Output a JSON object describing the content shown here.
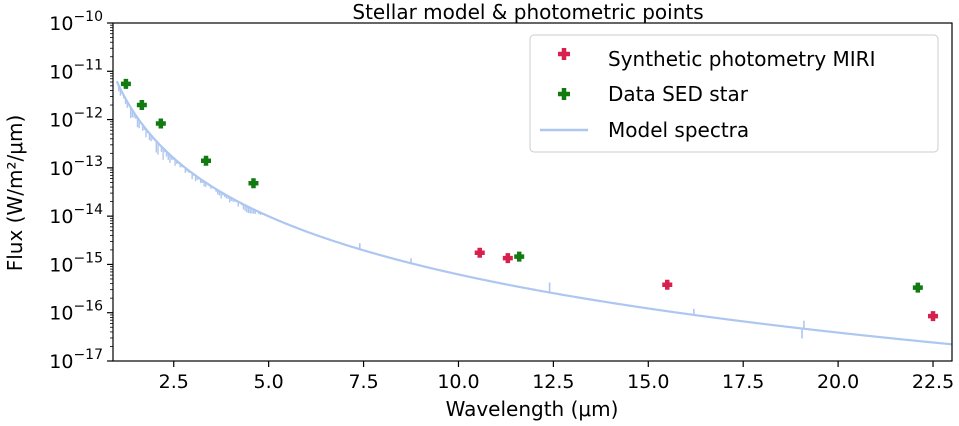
{
  "chart_data": {
    "type": "scatter",
    "title": "Stellar model & photometric points",
    "xlabel": "Wavelength (μm)",
    "ylabel": "Flux (W/m²/μm)",
    "xlim": [
      0.9,
      23.0
    ],
    "ylim_log10": [
      -17,
      -10
    ],
    "yscale": "log",
    "x_ticks": [
      2.5,
      5.0,
      7.5,
      10.0,
      12.5,
      15.0,
      17.5,
      20.0,
      22.5
    ],
    "x_tick_labels": [
      "2.5",
      "5.0",
      "7.5",
      "10.0",
      "12.5",
      "15.0",
      "17.5",
      "20.0",
      "22.5"
    ],
    "y_tick_exponents": [
      -10,
      -11,
      -12,
      -13,
      -14,
      -15,
      -16,
      -17
    ],
    "y_tick_base": "10",
    "legend_position": "upper-right",
    "series": [
      {
        "name": "Synthetic photometry MIRI",
        "marker": "plus",
        "color": "#d6204e",
        "points": [
          {
            "x": 10.56,
            "y": 1.75e-15
          },
          {
            "x": 11.3,
            "y": 1.35e-15
          },
          {
            "x": 15.5,
            "y": 3.8e-16
          },
          {
            "x": 22.5,
            "y": 8.5e-17
          }
        ]
      },
      {
        "name": "Data SED star",
        "marker": "plus",
        "color": "#117a11",
        "points": [
          {
            "x": 1.24,
            "y": 5.5e-12
          },
          {
            "x": 1.66,
            "y": 2e-12
          },
          {
            "x": 2.16,
            "y": 8.3e-13
          },
          {
            "x": 3.35,
            "y": 1.4e-13
          },
          {
            "x": 4.6,
            "y": 4.8e-14
          },
          {
            "x": 11.6,
            "y": 1.45e-15
          },
          {
            "x": 22.1,
            "y": 3.3e-16
          }
        ]
      },
      {
        "name": "Model spectra",
        "type": "line",
        "color": "#aec7f0",
        "law": "y = 6.2e-12 * x^-4 (Rayleigh–Jeans tail), x from 1.0 to 23.0"
      }
    ]
  }
}
